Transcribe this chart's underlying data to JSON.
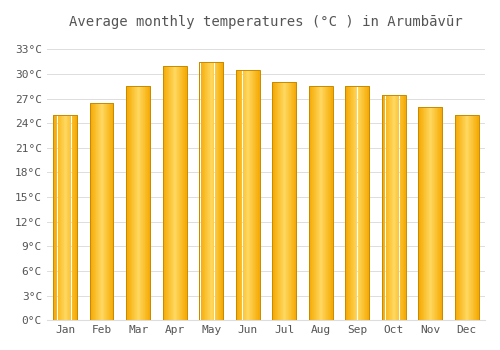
{
  "title": "Average monthly temperatures (°C ) in Arumbāvūr",
  "months": [
    "Jan",
    "Feb",
    "Mar",
    "Apr",
    "May",
    "Jun",
    "Jul",
    "Aug",
    "Sep",
    "Oct",
    "Nov",
    "Dec"
  ],
  "values": [
    25.0,
    26.5,
    28.5,
    31.0,
    31.5,
    30.5,
    29.0,
    28.5,
    28.5,
    27.5,
    26.0,
    25.0
  ],
  "bar_color_left": "#F5A800",
  "bar_color_right": "#FFD860",
  "bar_color_mid": "#FFCB30",
  "bar_edge_color": "#C88A00",
  "background_color": "#FFFFFF",
  "grid_color": "#DDDDDD",
  "ytick_values": [
    0,
    3,
    6,
    9,
    12,
    15,
    18,
    21,
    24,
    27,
    30,
    33
  ],
  "ylim": [
    0,
    34.5
  ],
  "title_fontsize": 10,
  "tick_fontsize": 8,
  "font_color": "#555555"
}
